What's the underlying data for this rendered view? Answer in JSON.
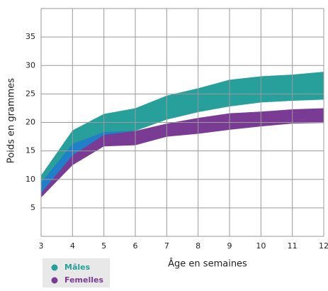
{
  "chart_data": {
    "type": "range-area",
    "x_label": "Âge en semaines",
    "y_label": "Poids en grammes",
    "x": [
      3,
      4,
      5,
      6,
      7,
      8,
      9,
      10,
      11,
      12
    ],
    "series": [
      {
        "name": "Mâles",
        "color": "#27a09c",
        "low": [
          7.6,
          14.2,
          17.8,
          18.5,
          20.5,
          21.8,
          22.8,
          23.5,
          23.8,
          24
        ],
        "high": [
          10.7,
          18.6,
          21.5,
          22.5,
          24.7,
          26,
          27.5,
          28.1,
          28.4,
          28.9
        ]
      },
      {
        "name": "Femelles",
        "color": "#7a3b94",
        "low": [
          6.8,
          12.5,
          15.8,
          16,
          17.5,
          18,
          18.7,
          19.3,
          19.8,
          19.9
        ],
        "high": [
          9.4,
          16.2,
          18.3,
          18.5,
          19.8,
          20.8,
          21.6,
          21.9,
          22.3,
          22.5
        ]
      }
    ],
    "overlap_color": "#1f7fc8",
    "xlim": [
      3,
      12
    ],
    "xticks": [
      3,
      4,
      5,
      6,
      7,
      8,
      9,
      10,
      11,
      12
    ],
    "ylim": [
      0,
      40
    ],
    "yticks": [
      5,
      10,
      15,
      20,
      25,
      30,
      35
    ],
    "grid": true
  }
}
